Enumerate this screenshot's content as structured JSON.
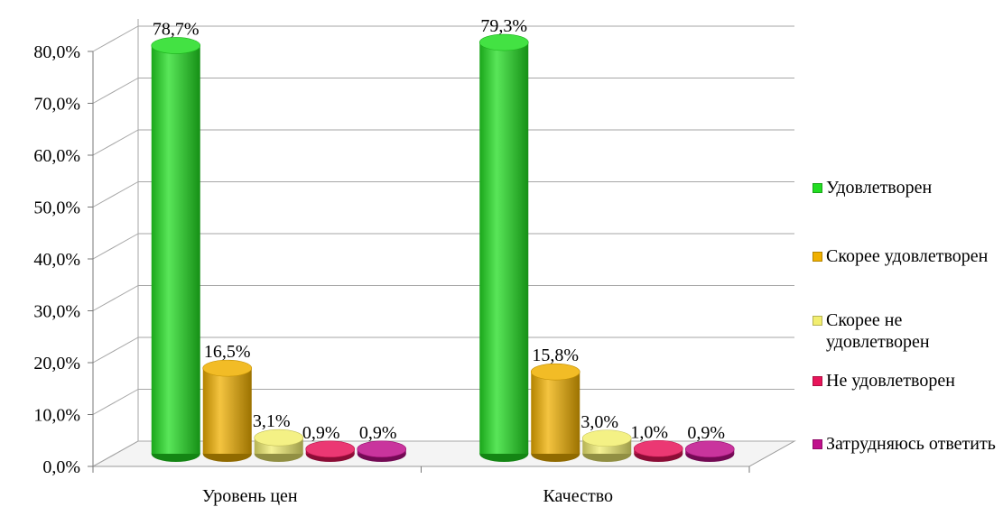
{
  "chart_data": {
    "type": "bar",
    "categories": [
      "Уровень цен",
      "Качество"
    ],
    "series": [
      {
        "name": "Удовлетворен",
        "values": [
          78.7,
          79.3
        ],
        "labels": [
          "78,7%",
          "79,3%"
        ],
        "color": "#22dd22"
      },
      {
        "name": "Скорее удовлетворен",
        "values": [
          16.5,
          15.8
        ],
        "labels": [
          "16,5%",
          "15,8%"
        ],
        "color": "#f0b000"
      },
      {
        "name": "Скорее не удовлетворен",
        "values": [
          3.1,
          3.0
        ],
        "labels": [
          "3,1%",
          "3,0%"
        ],
        "color": "#f2ee70"
      },
      {
        "name": "Не удовлетворен",
        "values": [
          0.9,
          1.0
        ],
        "labels": [
          "0,9%",
          "1,0%"
        ],
        "color": "#e8155a"
      },
      {
        "name": "Затрудняюсь ответить",
        "values": [
          0.9,
          0.9
        ],
        "labels": [
          "0,9%",
          "0,9%"
        ],
        "color": "#c0108c"
      }
    ],
    "y_ticks": [
      "0,0%",
      "10,0%",
      "20,0%",
      "30,0%",
      "40,0%",
      "50,0%",
      "60,0%",
      "70,0%",
      "80,0%"
    ],
    "ylim": [
      0,
      80
    ],
    "grid": true,
    "legend_position": "right",
    "style": "3d-cylinder"
  },
  "legend": {
    "items": [
      {
        "label": "Удовлетворен",
        "color": "#22dd22"
      },
      {
        "label": "Скорее удовлетворен",
        "color": "#f0b000"
      },
      {
        "label": "Скорее не удовлетворен",
        "color": "#f2ee70"
      },
      {
        "label": "Не удовлетворен",
        "color": "#e8155a"
      },
      {
        "label": "Затрудняюсь ответить",
        "color": "#c0108c"
      }
    ]
  }
}
